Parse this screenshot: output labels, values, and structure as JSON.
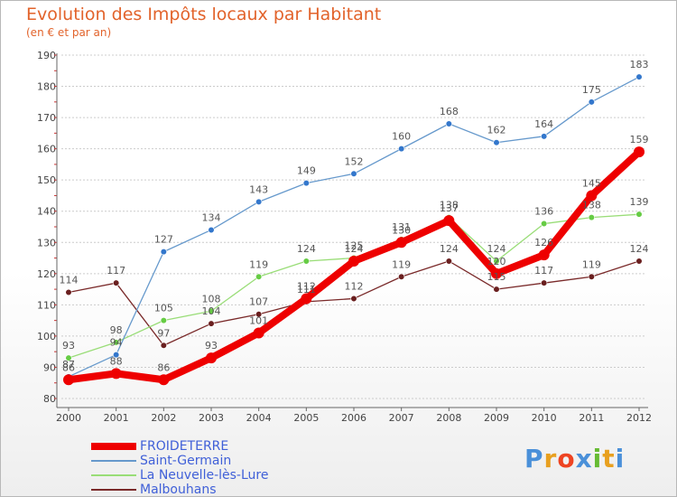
{
  "title": "Evolution des Impôts locaux par Habitant",
  "subtitle": "(en € et par an)",
  "logo_text": "Proxiti",
  "colors": {
    "title": "#e2632b",
    "grid": "#cccccc",
    "axis": "#666666",
    "legend_text": "#4060d8"
  },
  "chart_data": {
    "type": "line",
    "title": "Evolution des Impôts locaux par Habitant",
    "subtitle": "(en € et par an)",
    "xlabel": "",
    "ylabel": "",
    "x": [
      "2000",
      "2001",
      "2002",
      "2003",
      "2004",
      "2005",
      "2006",
      "2007",
      "2008",
      "2009",
      "2010",
      "2011",
      "2012"
    ],
    "ylim": [
      80,
      190
    ],
    "yticks": [
      "80",
      "90",
      "100",
      "110",
      "120",
      "130",
      "140",
      "150",
      "160",
      "170",
      "180",
      "190"
    ],
    "grid": "horizontal",
    "legend_position": "bottom-left",
    "series": [
      {
        "name": "FROIDETERRE",
        "color": "#ee0000",
        "style": "thick",
        "values": [
          86,
          88,
          86,
          93,
          101,
          112,
          124,
          130,
          137,
          120,
          126,
          145,
          159
        ],
        "labels": [
          "86",
          "88",
          "86",
          "93",
          "101",
          "112",
          "124",
          "130",
          "137",
          "120",
          "126",
          "145",
          "159"
        ]
      },
      {
        "name": "Saint-Germain",
        "color": "#6699cc",
        "marker": "#3377cc",
        "style": "thin",
        "values": [
          87,
          94,
          127,
          134,
          143,
          149,
          152,
          160,
          168,
          162,
          164,
          175,
          183
        ],
        "labels": [
          "87",
          "94",
          "127",
          "134",
          "143",
          "149",
          "152",
          "160",
          "168",
          "162",
          "164",
          "175",
          "183"
        ]
      },
      {
        "name": "La Neuvelle-lès-Lure",
        "color": "#99dd77",
        "marker": "#66cc44",
        "style": "thin",
        "values": [
          93,
          98,
          105,
          108,
          119,
          124,
          125,
          131,
          138,
          124,
          136,
          138,
          139
        ],
        "labels": [
          "93",
          "98",
          "105",
          "108",
          "119",
          "124",
          "125",
          "131",
          "138",
          "124",
          "136",
          "138",
          "139"
        ]
      },
      {
        "name": "Malbouhans",
        "color": "#7a2a2a",
        "marker": "#6a1f1f",
        "style": "thin",
        "values": [
          114,
          117,
          97,
          104,
          107,
          111,
          112,
          119,
          124,
          115,
          117,
          119,
          124
        ],
        "labels": [
          "114",
          "117",
          "97",
          "104",
          "107",
          "111",
          "112",
          "119",
          "124",
          "115",
          "117",
          "119",
          "124"
        ]
      }
    ]
  }
}
